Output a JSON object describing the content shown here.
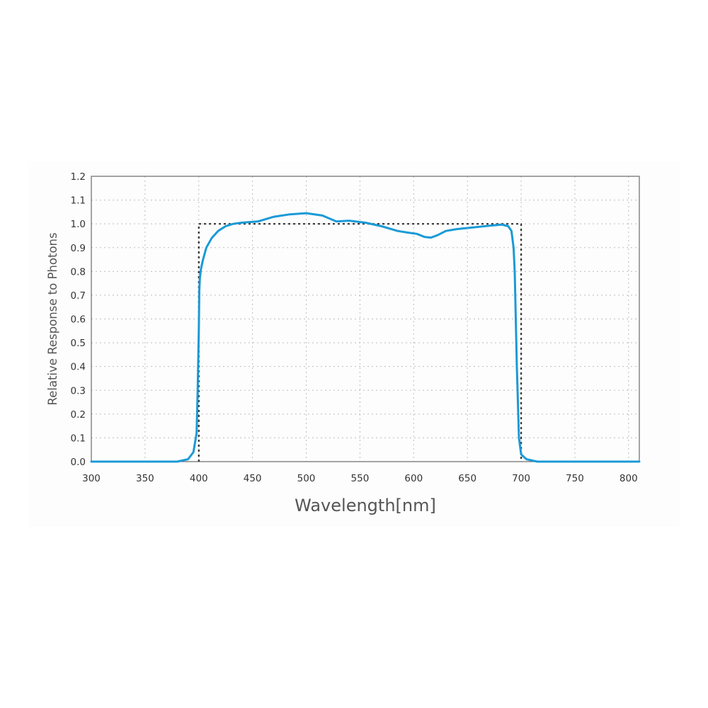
{
  "chart_data": {
    "type": "line",
    "title": "",
    "xlabel": "Wavelength[nm]",
    "ylabel": "Relative Response to Photons",
    "xlim": [
      300,
      810
    ],
    "ylim": [
      0.0,
      1.2
    ],
    "x_ticks": [
      "300",
      "350",
      "400",
      "450",
      "500",
      "550",
      "600",
      "650",
      "700",
      "750",
      "800"
    ],
    "y_ticks": [
      "0.0",
      "0.1",
      "0.2",
      "0.3",
      "0.4",
      "0.5",
      "0.6",
      "0.7",
      "0.8",
      "0.9",
      "1.0",
      "1.1",
      "1.2"
    ],
    "grid": true,
    "legend": "none",
    "series": [
      {
        "style": "solid",
        "color": "#1a9ad6",
        "x": [
          300,
          380,
          390,
          395,
          398,
          399,
          400,
          400.5,
          401,
          402,
          404,
          407,
          412,
          418,
          425,
          432,
          440,
          455,
          470,
          485,
          500,
          515,
          528,
          540,
          555,
          570,
          585,
          595,
          603,
          610,
          616,
          622,
          630,
          640,
          655,
          670,
          682,
          688,
          691,
          693,
          694,
          695,
          696,
          697,
          698,
          700,
          705,
          715,
          730,
          810
        ],
        "y": [
          0.0,
          0.0,
          0.01,
          0.04,
          0.12,
          0.3,
          0.55,
          0.72,
          0.77,
          0.81,
          0.85,
          0.9,
          0.94,
          0.97,
          0.99,
          1.0,
          1.005,
          1.01,
          1.03,
          1.04,
          1.045,
          1.035,
          1.01,
          1.013,
          1.005,
          0.99,
          0.97,
          0.963,
          0.958,
          0.945,
          0.942,
          0.952,
          0.97,
          0.978,
          0.985,
          0.992,
          0.997,
          0.99,
          0.97,
          0.9,
          0.8,
          0.6,
          0.4,
          0.25,
          0.1,
          0.03,
          0.01,
          0.0,
          0.0,
          0.0
        ]
      },
      {
        "style": "dotted",
        "color": "#333333",
        "x": [
          400,
          400,
          700,
          700
        ],
        "y": [
          0.0,
          1.0,
          1.0,
          0.0
        ]
      }
    ]
  }
}
